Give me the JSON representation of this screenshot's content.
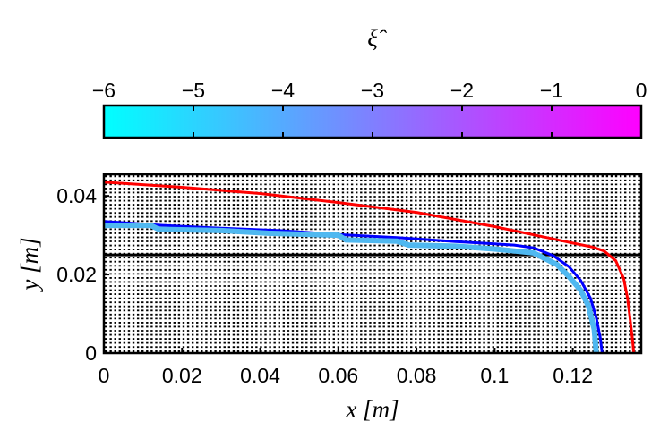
{
  "chart_data": {
    "type": "line",
    "colorbar": {
      "label": "ξ̂",
      "min": -6,
      "max": 0,
      "ticks": [
        -6,
        -5,
        -4,
        -3,
        -2,
        -1,
        0
      ],
      "tick_labels": [
        "−6",
        "−5",
        "−4",
        "−3",
        "−2",
        "−1",
        "0"
      ],
      "colors": [
        "#00ffff",
        "#ff00ff"
      ]
    },
    "xlabel": "x [m]",
    "ylabel": "y [m]",
    "xlim": [
      0,
      0.1375
    ],
    "ylim": [
      0,
      0.0455
    ],
    "xticks": [
      0,
      0.02,
      0.04,
      0.06,
      0.08,
      0.1,
      0.12
    ],
    "xtick_labels": [
      "0",
      "0.02",
      "0.04",
      "0.06",
      "0.08",
      "0.1",
      "0.12"
    ],
    "yticks": [
      0,
      0.02,
      0.04
    ],
    "ytick_labels": [
      "0",
      "0.02",
      "0.04"
    ],
    "grid": "dense mesh",
    "reference_line_y": 0.025,
    "series": [
      {
        "color": "#ff0000",
        "x": [
          0,
          0.02,
          0.04,
          0.06,
          0.08,
          0.1,
          0.11,
          0.12,
          0.125,
          0.128,
          0.131,
          0.133,
          0.134,
          0.1345,
          0.1352,
          0.1356
        ],
        "y": [
          0.0435,
          0.0422,
          0.0406,
          0.0383,
          0.0358,
          0.0322,
          0.0301,
          0.028,
          0.027,
          0.026,
          0.0235,
          0.019,
          0.014,
          0.01,
          0.004,
          0
        ]
      },
      {
        "color": "#0000ff",
        "x": [
          0,
          0.015,
          0.03,
          0.045,
          0.06,
          0.075,
          0.09,
          0.1,
          0.105,
          0.11,
          0.115,
          0.119,
          0.122,
          0.1245,
          0.126,
          0.127,
          0.1275
        ],
        "y": [
          0.0335,
          0.0325,
          0.0318,
          0.0312,
          0.0302,
          0.0294,
          0.0284,
          0.0278,
          0.0275,
          0.0268,
          0.0248,
          0.022,
          0.0185,
          0.014,
          0.009,
          0.004,
          0
        ]
      },
      {
        "color": "#4fb8f0",
        "x": [
          0,
          0.012,
          0.014,
          0.03,
          0.042,
          0.06,
          0.062,
          0.075,
          0.078,
          0.09,
          0.1,
          0.105,
          0.11,
          0.112,
          0.116,
          0.119,
          0.122,
          0.124,
          0.1255,
          0.126
        ],
        "y": [
          0.0325,
          0.0325,
          0.0315,
          0.0312,
          0.0305,
          0.03,
          0.0288,
          0.0285,
          0.0275,
          0.0272,
          0.0265,
          0.026,
          0.0255,
          0.0245,
          0.0225,
          0.0195,
          0.016,
          0.012,
          0.006,
          0
        ]
      }
    ]
  }
}
